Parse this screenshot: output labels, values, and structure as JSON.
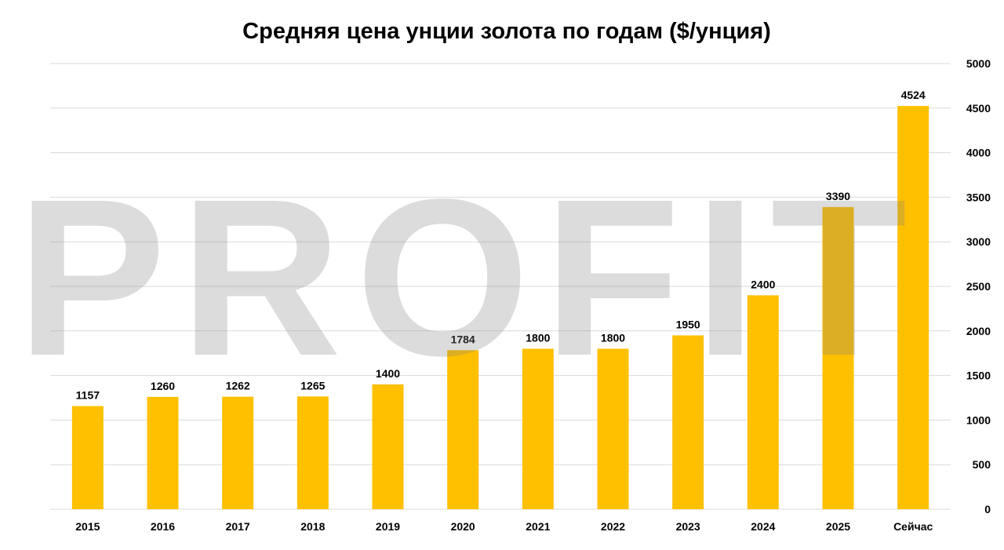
{
  "chart_data": {
    "type": "bar",
    "title": "Средняя цена унции золота по годам ($/унция)",
    "categories": [
      "2015",
      "2016",
      "2017",
      "2018",
      "2019",
      "2020",
      "2021",
      "2022",
      "2023",
      "2024",
      "2025",
      "Сейчас"
    ],
    "values": [
      1157,
      1260,
      1262,
      1265,
      1400,
      1784,
      1800,
      1800,
      1950,
      2400,
      3390,
      4524
    ],
    "data_labels": [
      "1157",
      "1260",
      "1262",
      "1265",
      "1400",
      "1784",
      "1800",
      "1800",
      "1950",
      "2400",
      "3390",
      "4524"
    ],
    "ylim": [
      0,
      5000
    ],
    "y_ticks": [
      "0",
      "500",
      "1000",
      "1500",
      "2000",
      "2500",
      "3000",
      "3500",
      "4000",
      "4500",
      "5000"
    ],
    "y_axis_side": "right",
    "grid": true,
    "legend": "none",
    "bar_color": "#ffc000",
    "grid_color": "#d9d9d9"
  },
  "watermark": {
    "text": "PROFIT",
    "color": "#808080"
  }
}
